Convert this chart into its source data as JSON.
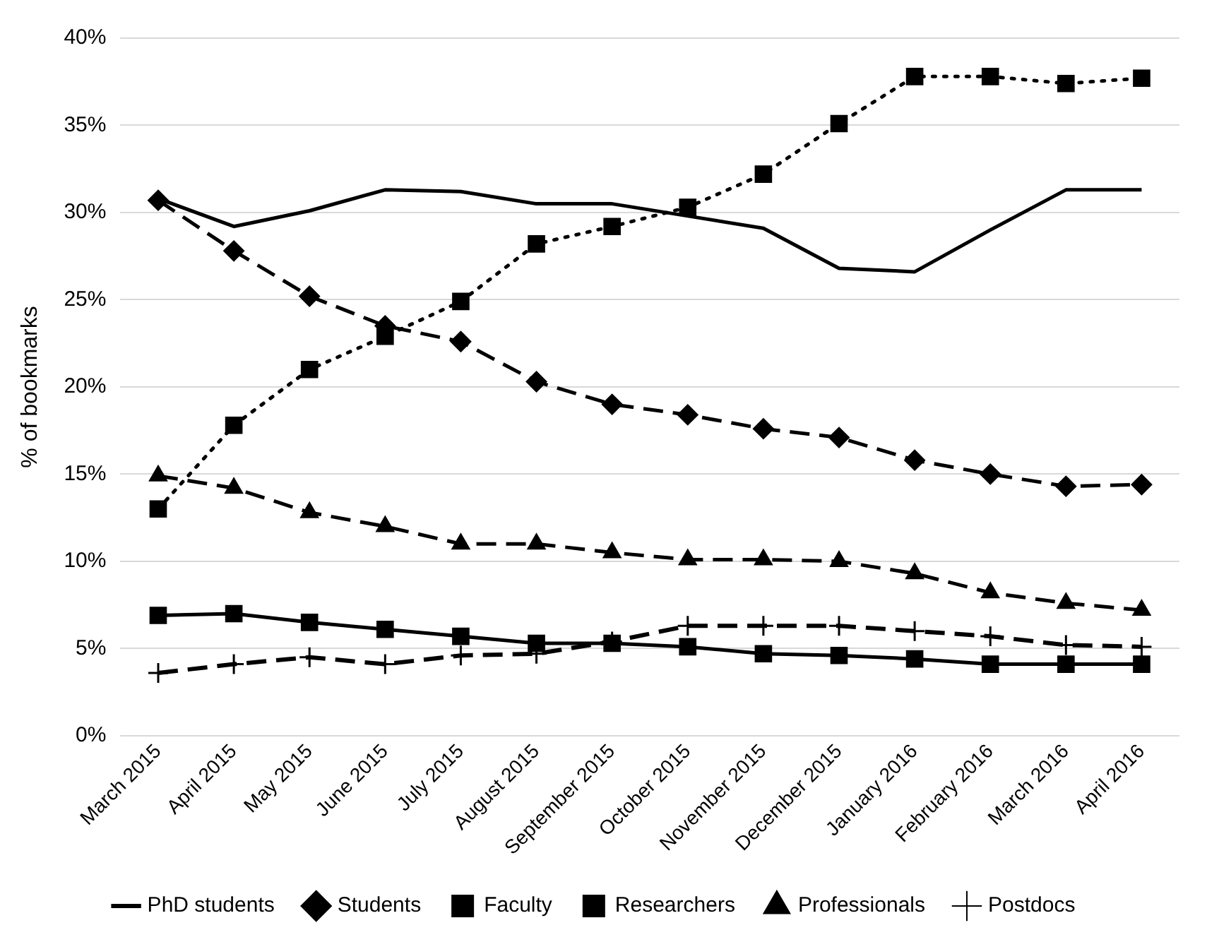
{
  "chart_data": {
    "type": "line",
    "ylabel": "% of bookmarks",
    "categories": [
      "March 2015",
      "April 2015",
      "May 2015",
      "June 2015",
      "July 2015",
      "August 2015",
      "September 2015",
      "October 2015",
      "November 2015",
      "December 2015",
      "January 2016",
      "February 2016",
      "March 2016",
      "April 2016"
    ],
    "series": [
      {
        "name": "PhD students",
        "color": "#000000",
        "marker": "none",
        "line_style": "solid",
        "values": [
          30.8,
          29.2,
          30.1,
          31.3,
          31.2,
          30.5,
          30.5,
          29.8,
          29.1,
          26.8,
          26.6,
          29.0,
          31.3,
          31.3
        ]
      },
      {
        "name": "Students",
        "color": "#000000",
        "marker": "diamond",
        "line_style": "dashed",
        "values": [
          30.7,
          27.8,
          25.2,
          23.5,
          22.6,
          20.3,
          19.0,
          18.4,
          17.6,
          17.1,
          15.8,
          15.0,
          14.3,
          14.4
        ]
      },
      {
        "name": "Faculty",
        "color": "#000000",
        "marker": "square",
        "line_style": "dotted",
        "values": [
          13.0,
          17.8,
          21.0,
          22.9,
          24.9,
          28.2,
          29.2,
          30.3,
          32.2,
          35.1,
          37.8,
          37.8,
          37.4,
          37.7
        ]
      },
      {
        "name": "Researchers",
        "color": "#000000",
        "marker": "square",
        "line_style": "solid",
        "values": [
          6.9,
          7.0,
          6.5,
          6.1,
          5.7,
          5.3,
          5.3,
          5.1,
          4.7,
          4.6,
          4.4,
          4.1,
          4.1,
          4.1
        ]
      },
      {
        "name": "Professionals",
        "color": "#000000",
        "marker": "triangle",
        "line_style": "dashed",
        "values": [
          14.9,
          14.2,
          12.8,
          12.0,
          11.0,
          11.0,
          10.5,
          10.1,
          10.1,
          10.0,
          9.3,
          8.2,
          7.6,
          7.2
        ]
      },
      {
        "name": "Postdocs",
        "color": "#000000",
        "marker": "cross",
        "line_style": "dashed",
        "values": [
          3.6,
          4.1,
          4.5,
          4.1,
          4.6,
          4.7,
          5.4,
          6.3,
          6.3,
          6.3,
          6.0,
          5.7,
          5.2,
          5.1
        ]
      }
    ],
    "ylim": [
      0,
      40
    ],
    "yticks": [
      {
        "value": 0,
        "label": "0%"
      },
      {
        "value": 5,
        "label": "5%"
      },
      {
        "value": 10,
        "label": "10%"
      },
      {
        "value": 15,
        "label": "15%"
      },
      {
        "value": 20,
        "label": "20%"
      },
      {
        "value": 25,
        "label": "25%"
      },
      {
        "value": 30,
        "label": "30%"
      },
      {
        "value": 35,
        "label": "35%"
      },
      {
        "value": 40,
        "label": "40%"
      }
    ],
    "grid": "y",
    "legend": "bottom"
  }
}
